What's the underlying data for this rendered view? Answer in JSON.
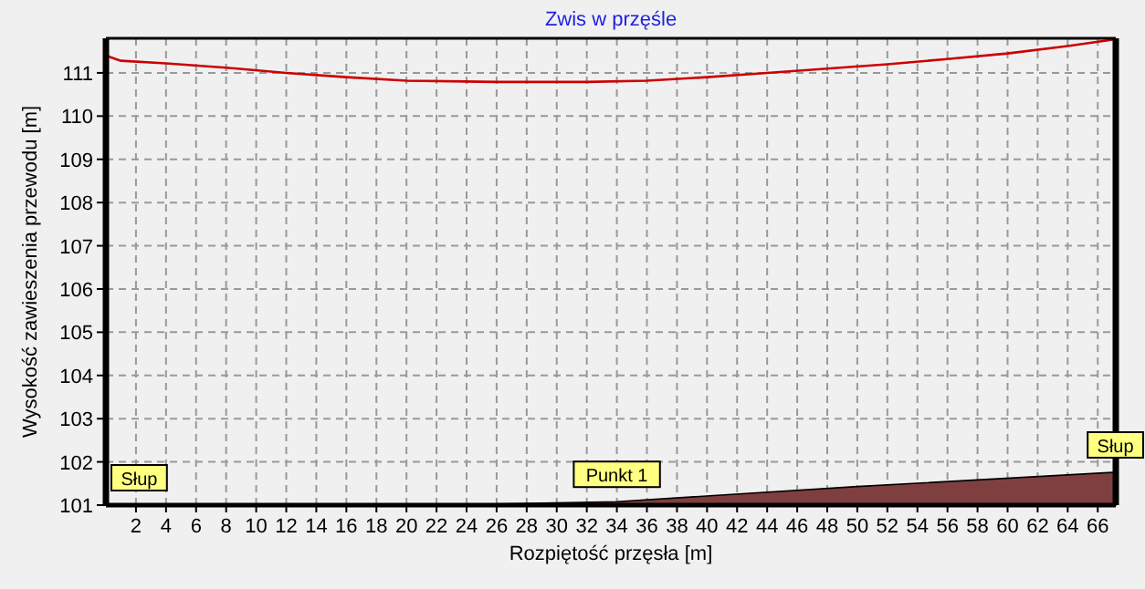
{
  "chart_data": {
    "type": "line",
    "title": "Zwis w przęśle",
    "xlabel": "Rozpiętość przęsła [m]",
    "ylabel": "Wysokość zawieszenia przewodu [m]",
    "xlim": [
      0,
      67.2
    ],
    "ylim": [
      101,
      111.8
    ],
    "xticks": [
      2,
      4,
      6,
      8,
      10,
      12,
      14,
      16,
      18,
      20,
      22,
      24,
      26,
      28,
      30,
      32,
      34,
      36,
      38,
      40,
      42,
      44,
      46,
      48,
      50,
      52,
      54,
      56,
      58,
      60,
      62,
      64,
      66
    ],
    "yticks": [
      101,
      102,
      103,
      104,
      105,
      106,
      107,
      108,
      109,
      110,
      111
    ],
    "grid": true,
    "series": [
      {
        "type": "area",
        "color": "#7f3f3f",
        "x": [
          0,
          25,
          34,
          50,
          67.2
        ],
        "values": [
          101,
          101.02,
          101.08,
          101.43,
          101.76
        ]
      },
      {
        "color": "#cc0000",
        "x": [
          0,
          1,
          4,
          8,
          12,
          16,
          20,
          26,
          32,
          36,
          40,
          44,
          48,
          52,
          56,
          60,
          64,
          67.2
        ],
        "values": [
          111.4,
          111.28,
          111.22,
          111.12,
          111.0,
          110.9,
          110.82,
          110.79,
          110.79,
          110.82,
          110.9,
          111.0,
          111.1,
          111.2,
          111.32,
          111.45,
          111.62,
          111.78
        ]
      }
    ],
    "annotations": [
      {
        "text": "Słup",
        "x": 0,
        "y": 101
      },
      {
        "text": "Punkt 1",
        "x": 34,
        "y": 101.08
      },
      {
        "text": "Słup",
        "x": 67.2,
        "y": 101.76
      }
    ]
  }
}
